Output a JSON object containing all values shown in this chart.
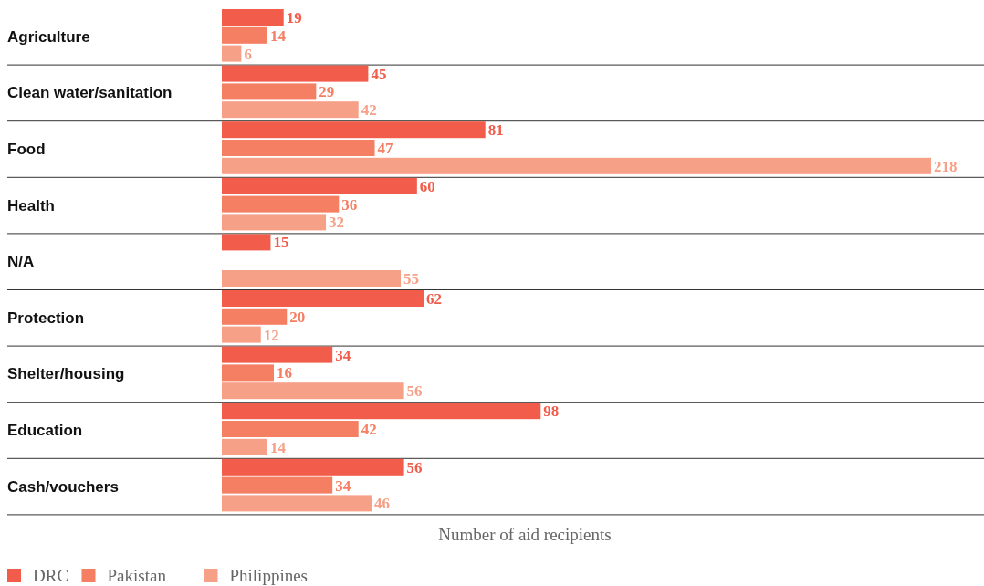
{
  "chart_data": {
    "type": "bar",
    "orientation": "horizontal",
    "data_labels": true,
    "legend": "bottom left",
    "xlabel": "Number of aid recipients",
    "categories": [
      "Agriculture",
      "Clean water/sanitation",
      "Food",
      "Health",
      "N/A",
      "Protection",
      "Shelter/housing",
      "Education",
      "Cash/vouchers"
    ],
    "series": [
      {
        "name": "DRC",
        "color": "#f25c4a",
        "values": [
          19,
          45,
          81,
          60,
          15,
          62,
          34,
          98,
          56
        ]
      },
      {
        "name": "Pakistan",
        "color": "#f47f63",
        "values": [
          14,
          29,
          47,
          36,
          null,
          20,
          16,
          42,
          34
        ]
      },
      {
        "name": "Philippines",
        "color": "#f7a088",
        "values": [
          6,
          42,
          218,
          32,
          55,
          12,
          56,
          14,
          46
        ]
      }
    ]
  }
}
